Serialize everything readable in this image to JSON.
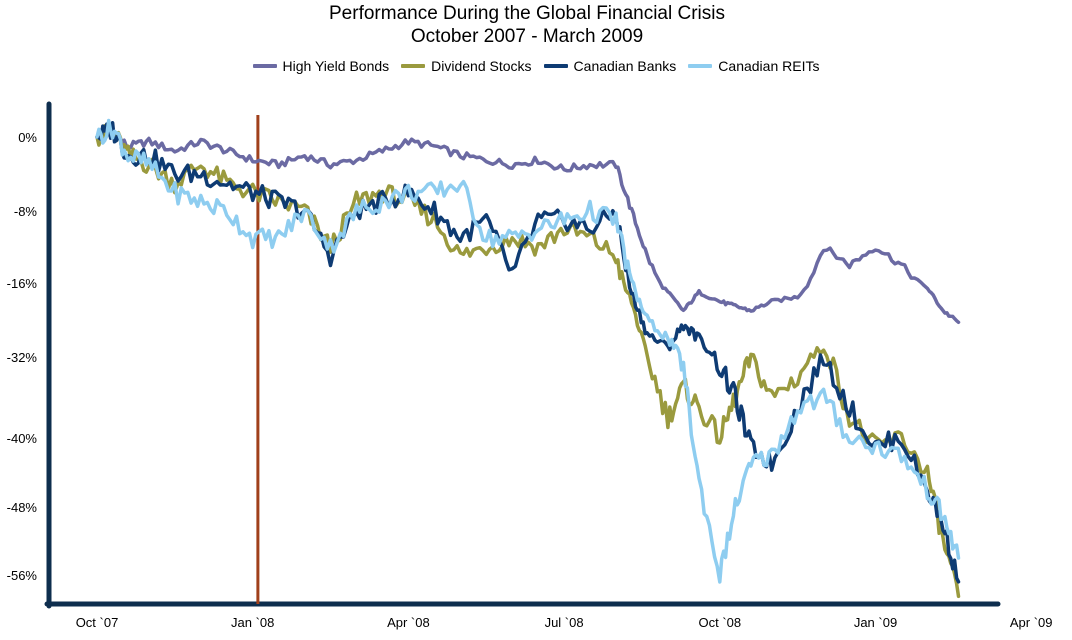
{
  "title": {
    "line1": "Performance During the Global Financial Crisis",
    "line2": "October 2007 - March 2009"
  },
  "chart_data": {
    "type": "line",
    "title": "Performance During the Global Financial Crisis October 2007 - March 2009",
    "xlabel": "",
    "ylabel": "",
    "x_ticks": [
      "Oct `07",
      "Jan `08",
      "Apr `08",
      "Jul `08",
      "Oct `08",
      "Jan `09",
      "Apr `09"
    ],
    "y_ticks": [
      "0%",
      "-8%",
      "-16%",
      "-32%",
      "-40%",
      "-48%",
      "-56%"
    ],
    "ylim": [
      -60,
      2
    ],
    "grid": false,
    "legend_position": "top",
    "x_unit": "months since Oct 2007",
    "marker_line": {
      "x": 3.1,
      "color": "#A0401B"
    },
    "series": [
      {
        "name": "High Yield Bonds",
        "color": "#6B6AA3",
        "x": [
          0,
          0.3,
          0.6,
          1.0,
          1.5,
          2.0,
          2.5,
          3.0,
          3.5,
          4.0,
          4.5,
          5.0,
          5.5,
          6.0,
          6.5,
          7.0,
          7.5,
          8.0,
          8.5,
          9.0,
          9.5,
          10.0,
          10.3,
          10.6,
          11.0,
          11.3,
          11.6,
          12.0,
          12.3,
          12.6,
          13.0,
          13.5,
          14.0,
          14.5,
          15.0,
          15.5,
          16.0,
          16.3,
          16.6
        ],
        "values": [
          0,
          0.5,
          -1,
          -0.5,
          -1.5,
          -0.5,
          -1.5,
          -2.5,
          -3,
          -2,
          -3,
          -2.5,
          -1.5,
          -0.5,
          -1,
          -2,
          -2.5,
          -3,
          -2.5,
          -3.5,
          -3,
          -3,
          -8,
          -13,
          -18,
          -22,
          -18,
          -20,
          -21,
          -22,
          -20,
          -19,
          -12,
          -14,
          -12,
          -14,
          -17,
          -22,
          -24.5
        ]
      },
      {
        "name": "Dividend Stocks",
        "color": "#9A9A3E",
        "x": [
          0,
          0.3,
          0.6,
          1.0,
          1.5,
          2.0,
          2.5,
          3.0,
          3.5,
          4.0,
          4.5,
          5.0,
          5.5,
          6.0,
          6.5,
          7.0,
          7.5,
          8.0,
          8.5,
          9.0,
          9.5,
          10.0,
          10.3,
          10.6,
          11.0,
          11.3,
          11.6,
          12.0,
          12.3,
          12.6,
          13.0,
          13.5,
          14.0,
          14.5,
          15.0,
          15.5,
          16.0,
          16.3,
          16.6
        ],
        "values": [
          0,
          0.5,
          -2,
          -3,
          -5,
          -3,
          -5,
          -6,
          -7,
          -8,
          -12,
          -7,
          -6,
          -7,
          -9,
          -13,
          -12,
          -11,
          -12,
          -10,
          -11,
          -13,
          -20,
          -32,
          -38,
          -35,
          -37,
          -40,
          -36,
          -32,
          -36,
          -34,
          -30,
          -38,
          -41,
          -40,
          -44,
          -52,
          -58.5
        ]
      },
      {
        "name": "Canadian Banks",
        "color": "#0E3B73",
        "x": [
          0,
          0.3,
          0.6,
          1.0,
          1.5,
          2.0,
          2.5,
          3.0,
          3.5,
          4.0,
          4.5,
          5.0,
          5.5,
          6.0,
          6.5,
          7.0,
          7.5,
          8.0,
          8.5,
          9.0,
          9.5,
          10.0,
          10.3,
          10.6,
          11.0,
          11.3,
          11.6,
          12.0,
          12.3,
          12.6,
          13.0,
          13.5,
          14.0,
          14.5,
          15.0,
          15.5,
          16.0,
          16.3,
          16.6
        ],
        "values": [
          0,
          0.8,
          -2,
          -2,
          -4,
          -4,
          -5,
          -6,
          -7,
          -8,
          -13,
          -8,
          -7,
          -6,
          -8,
          -11,
          -9,
          -15,
          -9,
          -9,
          -10,
          -8,
          -18,
          -27,
          -30,
          -25,
          -28,
          -33,
          -36,
          -41,
          -43,
          -37,
          -32,
          -37,
          -41,
          -40,
          -46,
          -50,
          -56.8
        ]
      },
      {
        "name": "Canadian REITs",
        "color": "#8ECDF0",
        "x": [
          0,
          0.3,
          0.6,
          1.0,
          1.5,
          2.0,
          2.5,
          3.0,
          3.5,
          4.0,
          4.5,
          5.0,
          5.5,
          6.0,
          6.5,
          7.0,
          7.5,
          8.0,
          8.5,
          9.0,
          9.5,
          10.0,
          10.3,
          10.6,
          11.0,
          11.3,
          11.6,
          12.0,
          12.3,
          12.6,
          13.0,
          13.5,
          14.0,
          14.5,
          15.0,
          15.5,
          16.0,
          16.3,
          16.6
        ],
        "values": [
          0,
          1,
          -2,
          -3,
          -6,
          -7,
          -8,
          -11,
          -11,
          -8,
          -12,
          -8,
          -7,
          -6,
          -6,
          -5,
          -11,
          -11,
          -10,
          -9,
          -8,
          -9,
          -16,
          -24,
          -28,
          -33,
          -45,
          -56,
          -48,
          -43,
          -42,
          -37,
          -36,
          -40,
          -41,
          -42,
          -46,
          -49,
          -54
        ]
      }
    ]
  }
}
